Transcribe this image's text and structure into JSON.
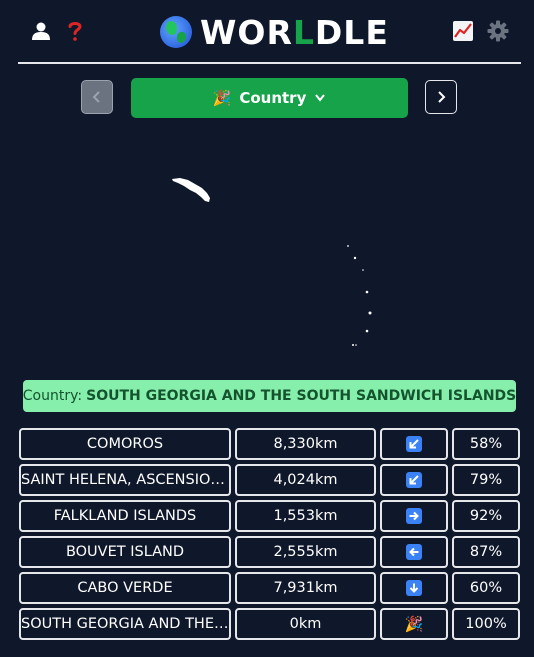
{
  "header": {
    "logo_pre": "WOR",
    "logo_accent": "L",
    "logo_post": "DLE",
    "icons": [
      "user-icon",
      "help-icon",
      "stats-icon",
      "settings-icon"
    ]
  },
  "mode": {
    "emoji": "🎉",
    "label": "Country"
  },
  "answer": {
    "prefix": "Country:",
    "name": "SOUTH GEORGIA AND THE SOUTH SANDWICH ISLANDS"
  },
  "guesses": [
    {
      "name": "COMOROS",
      "distance": "8,330km",
      "direction": "arrow-down-left",
      "percent": "58%"
    },
    {
      "name": "SAINT HELENA, ASCENSION AND TRISTAN DA CUNHA",
      "distance": "4,024km",
      "direction": "arrow-down-left",
      "percent": "79%"
    },
    {
      "name": "FALKLAND ISLANDS",
      "distance": "1,553km",
      "direction": "arrow-right",
      "percent": "92%"
    },
    {
      "name": "BOUVET ISLAND",
      "distance": "2,555km",
      "direction": "arrow-left",
      "percent": "87%"
    },
    {
      "name": "CABO VERDE",
      "distance": "7,931km",
      "direction": "arrow-down",
      "percent": "60%"
    },
    {
      "name": "SOUTH GEORGIA AND THE SOUTH SANDWICH ISLANDS",
      "distance": "0km",
      "direction": "party",
      "percent": "100%"
    }
  ],
  "colors": {
    "background": "#0f172a",
    "accent_green": "#16a34a",
    "answer_bg": "#86efac",
    "arrow_blue": "#3b82f6"
  }
}
